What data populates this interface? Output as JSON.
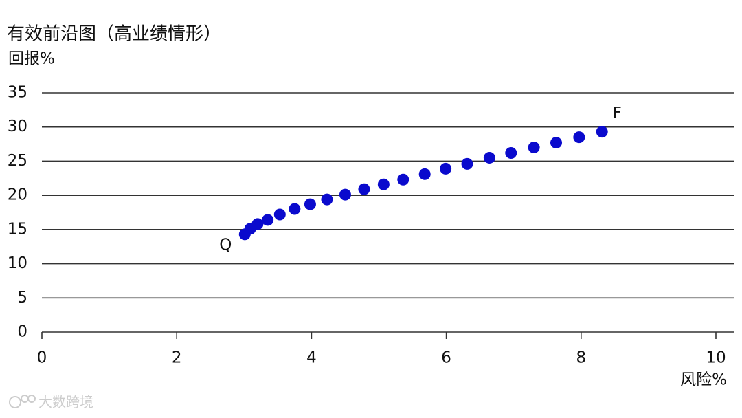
{
  "chart_data": {
    "type": "scatter",
    "title": "有效前沿图（高业绩情形）",
    "ylabel": "回报%",
    "xlabel": "风险%",
    "watermark": "大数跨境",
    "color": "#0a0acd",
    "x": [
      3.01,
      3.09,
      3.2,
      3.35,
      3.53,
      3.75,
      3.98,
      4.23,
      4.5,
      4.78,
      5.07,
      5.36,
      5.68,
      5.99,
      6.31,
      6.64,
      6.96,
      7.3,
      7.63,
      7.97,
      8.31
    ],
    "values": [
      14.3,
      15.1,
      15.8,
      16.4,
      17.2,
      18.0,
      18.7,
      19.4,
      20.1,
      20.9,
      21.6,
      22.3,
      23.1,
      23.9,
      24.6,
      25.5,
      26.2,
      27.0,
      27.7,
      28.5,
      29.3
    ],
    "annotations": [
      {
        "text": "Q",
        "point": 0
      },
      {
        "text": "F",
        "point": 20
      }
    ],
    "xlim": [
      0,
      10
    ],
    "xticks": [
      0,
      2,
      4,
      6,
      8,
      10
    ],
    "ylim": [
      0,
      35
    ],
    "yticks": [
      0,
      5,
      10,
      15,
      20,
      25,
      30,
      35
    ],
    "grid": true
  }
}
